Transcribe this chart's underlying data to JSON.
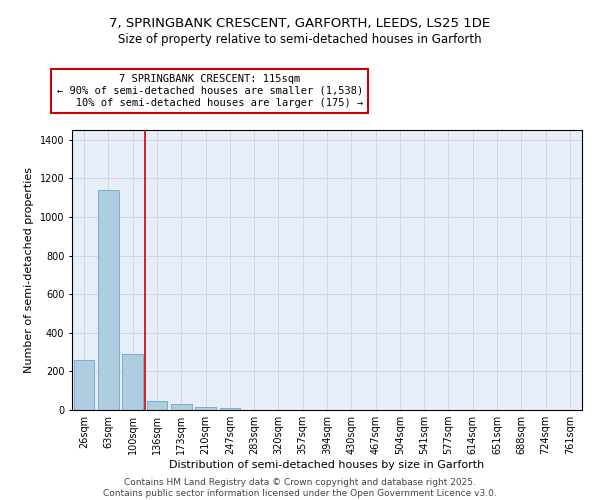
{
  "title_line1": "7, SPRINGBANK CRESCENT, GARFORTH, LEEDS, LS25 1DE",
  "title_line2": "Size of property relative to semi-detached houses in Garforth",
  "xlabel": "Distribution of semi-detached houses by size in Garforth",
  "ylabel": "Number of semi-detached properties",
  "categories": [
    "26sqm",
    "63sqm",
    "100sqm",
    "136sqm",
    "173sqm",
    "210sqm",
    "247sqm",
    "283sqm",
    "320sqm",
    "357sqm",
    "394sqm",
    "430sqm",
    "467sqm",
    "504sqm",
    "541sqm",
    "577sqm",
    "614sqm",
    "651sqm",
    "688sqm",
    "724sqm",
    "761sqm"
  ],
  "values": [
    258,
    1138,
    290,
    47,
    33,
    13,
    10,
    0,
    0,
    0,
    0,
    0,
    0,
    0,
    0,
    0,
    0,
    0,
    0,
    0,
    0
  ],
  "bar_color": "#aecde1",
  "bar_edge_color": "#5a9dc5",
  "annotation_text": "7 SPRINGBANK CRESCENT: 115sqm\n← 90% of semi-detached houses are smaller (1,538)\n   10% of semi-detached houses are larger (175) →",
  "annotation_box_color": "#ffffff",
  "annotation_edge_color": "#cc0000",
  "red_line_color": "#cc0000",
  "ylim": [
    0,
    1450
  ],
  "yticks": [
    0,
    200,
    400,
    600,
    800,
    1000,
    1200,
    1400
  ],
  "grid_color": "#d0d8e8",
  "bg_color": "#e8eef8",
  "footer": "Contains HM Land Registry data © Crown copyright and database right 2025.\nContains public sector information licensed under the Open Government Licence v3.0.",
  "title_fontsize": 9.5,
  "subtitle_fontsize": 8.5,
  "axis_label_fontsize": 8,
  "tick_fontsize": 7,
  "annotation_fontsize": 7.5,
  "footer_fontsize": 6.5
}
